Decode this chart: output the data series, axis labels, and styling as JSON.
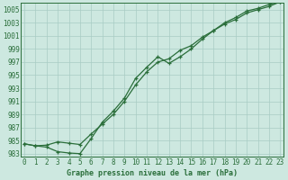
{
  "xlabel": "Graphe pression niveau de la mer (hPa)",
  "background_color": "#cde8e0",
  "grid_color": "#a8ccc4",
  "line_color": "#2a6e3a",
  "spine_color": "#2a6e3a",
  "x": [
    0,
    1,
    2,
    3,
    4,
    5,
    6,
    7,
    8,
    9,
    10,
    11,
    12,
    13,
    14,
    15,
    16,
    17,
    18,
    19,
    20,
    21,
    22,
    23
  ],
  "line1": [
    984.5,
    984.2,
    984.3,
    984.8,
    984.6,
    984.4,
    986.0,
    987.5,
    989.0,
    991.0,
    993.5,
    995.5,
    997.0,
    997.5,
    998.8,
    999.5,
    1000.8,
    1001.8,
    1002.8,
    1003.5,
    1004.5,
    1005.0,
    1005.5,
    1006.2
  ],
  "line2": [
    984.5,
    984.2,
    984.0,
    983.3,
    983.1,
    983.0,
    985.3,
    987.8,
    989.5,
    991.5,
    994.5,
    996.2,
    997.8,
    996.8,
    997.8,
    999.0,
    1000.5,
    1001.8,
    1003.0,
    1003.8,
    1004.8,
    1005.2,
    1005.8,
    1006.2
  ],
  "ylim_min": 982.5,
  "ylim_max": 1006.0,
  "ytick_vals": [
    983,
    985,
    987,
    989,
    991,
    993,
    995,
    997,
    999,
    1001,
    1003,
    1005
  ],
  "xtick_vals": [
    0,
    1,
    2,
    3,
    4,
    5,
    6,
    7,
    8,
    9,
    10,
    11,
    12,
    13,
    14,
    15,
    16,
    17,
    18,
    19,
    20,
    21,
    22,
    23
  ],
  "marker": "+",
  "markersize": 3.5,
  "linewidth": 0.9,
  "tick_fontsize": 5.5,
  "xlabel_fontsize": 6.0
}
